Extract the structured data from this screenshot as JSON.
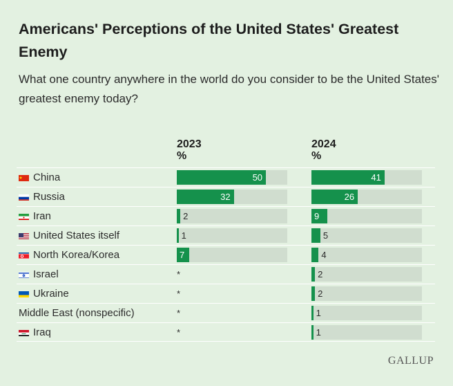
{
  "title": "Americans' Perceptions of the United States' Greatest Enemy",
  "subtitle": "What one country anywhere in the world do you consider to be the United States' greatest enemy today?",
  "source_logo": "GALLUP",
  "chart_data": {
    "type": "bar",
    "orientation": "horizontal",
    "value_unit": "%",
    "xlim": [
      0,
      62
    ],
    "categories": [
      "China",
      "Russia",
      "Iran",
      "United States itself",
      "North Korea/Korea",
      "Israel",
      "Ukraine",
      "Middle East (nonspecific)",
      "Iraq"
    ],
    "flags": [
      "china",
      "russia",
      "iran",
      "usa",
      "north-korea",
      "israel",
      "ukraine",
      null,
      "iraq"
    ],
    "series": [
      {
        "name": "2023",
        "unit_label": "%",
        "values": [
          50,
          32,
          2,
          1,
          7,
          null,
          null,
          null,
          null
        ],
        "display": [
          "50",
          "32",
          "2",
          "1",
          "7",
          "*",
          "*",
          "*",
          "*"
        ]
      },
      {
        "name": "2024",
        "unit_label": "%",
        "values": [
          41,
          26,
          9,
          5,
          4,
          2,
          2,
          1,
          1
        ],
        "display": [
          "41",
          "26",
          "9",
          "5",
          "4",
          "2",
          "2",
          "1",
          "1"
        ]
      }
    ],
    "colors": {
      "bar": "#15914c",
      "track": "#d0ddcf",
      "background": "#e3f1e1"
    }
  }
}
